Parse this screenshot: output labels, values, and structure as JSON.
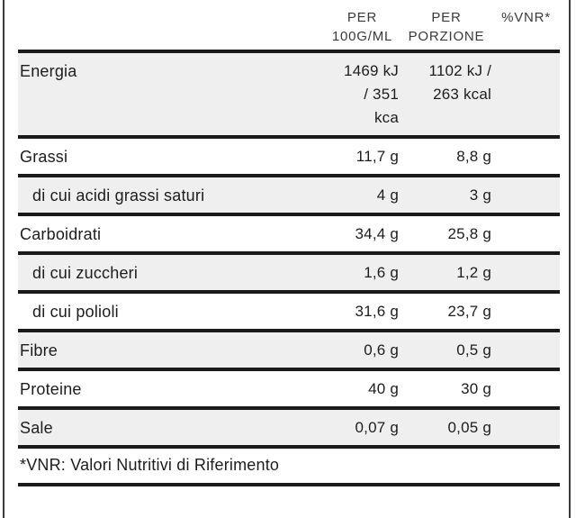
{
  "colors": {
    "rule": "#1a1a1a",
    "alt_row_bg": "#efefef",
    "text": "#1d1d1b",
    "side_border": "#3a3a3a"
  },
  "header": {
    "col_label": "",
    "col_per_100": "PER 100G/ML",
    "col_per_portion": "PER PORZIONE",
    "col_vnr": "%VNR*"
  },
  "rows": [
    {
      "label": "Energia",
      "per100": "1469 kJ\n/ 351\nkca",
      "portion": "1102 kJ /\n263 kcal",
      "vnr": ""
    },
    {
      "label": "Grassi",
      "per100": "11,7 g",
      "portion": "8,8 g",
      "vnr": ""
    },
    {
      "label": "di cui acidi grassi saturi",
      "per100": "4 g",
      "portion": "3 g",
      "vnr": ""
    },
    {
      "label": "Carboidrati",
      "per100": "34,4 g",
      "portion": "25,8 g",
      "vnr": ""
    },
    {
      "label": "di cui zuccheri",
      "per100": "1,6 g",
      "portion": "1,2 g",
      "vnr": ""
    },
    {
      "label": "di cui polioli",
      "per100": "31,6 g",
      "portion": "23,7 g",
      "vnr": ""
    },
    {
      "label": "Fibre",
      "per100": "0,6 g",
      "portion": "0,5 g",
      "vnr": ""
    },
    {
      "label": "Proteine",
      "per100": "40 g",
      "portion": "30 g",
      "vnr": ""
    },
    {
      "label": "Sale",
      "per100": "0,07 g",
      "portion": "0,05 g",
      "vnr": ""
    }
  ],
  "footnote": "*VNR: Valori Nutritivi di Riferimento"
}
